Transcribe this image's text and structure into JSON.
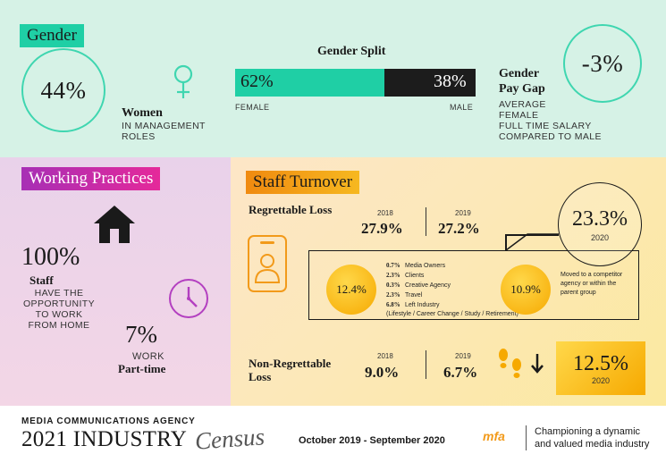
{
  "gender": {
    "tag": "Gender",
    "women_pct": "44%",
    "women_title": "Women",
    "women_desc_1": "IN MANAGEMENT",
    "women_desc_2": "ROLES",
    "split_title": "Gender Split",
    "female_pct": "62%",
    "male_pct": "38%",
    "female_label": "FEMALE",
    "male_label": "MALE",
    "female_share": 0.62,
    "paygap_title_1": "Gender",
    "paygap_title_2": "Pay Gap",
    "paygap_desc_1": "AVERAGE",
    "paygap_desc_2": "FEMALE",
    "paygap_desc_3": "FULL TIME SALARY",
    "paygap_desc_4": "COMPARED TO MALE",
    "paygap_value": "-3%",
    "accent": "#1fcfa5"
  },
  "working_practices": {
    "tag": "Working Practices",
    "staff_pct": "100%",
    "staff_title": "Staff",
    "staff_desc_1": "HAVE THE",
    "staff_desc_2": "OPPORTUNITY",
    "staff_desc_3": "TO WORK",
    "staff_desc_4": "FROM HOME",
    "parttime_pct": "7%",
    "parttime_desc": "WORK",
    "parttime_title": "Part-time",
    "icons": [
      "home-icon",
      "clock-icon"
    ]
  },
  "staff_turnover": {
    "tag": "Staff Turnover",
    "regrettable_title": "Regrettable Loss",
    "year_2018": "2018",
    "year_2019": "2019",
    "reg_2018": "27.9%",
    "reg_2019": "27.2%",
    "reg_2020": "23.3%",
    "reg_2020_year": "2020",
    "reason_a_pct": "12.4%",
    "reason_a_items": [
      {
        "pct": "0.7%",
        "label": "Media Owners"
      },
      {
        "pct": "2.3%",
        "label": "Clients"
      },
      {
        "pct": "0.3%",
        "label": "Creative Agency"
      },
      {
        "pct": "2.3%",
        "label": "Travel"
      },
      {
        "pct": "6.8%",
        "label": "Left Industry"
      }
    ],
    "reason_a_note": "(Lifestyle / Career Change / Study / Retirement)",
    "reason_b_pct": "10.9%",
    "reason_b_desc_1": "Moved to a competitor",
    "reason_b_desc_2": "agency or within the",
    "reason_b_desc_3": "parent group",
    "nonreg_title_1": "Non-Regrettable",
    "nonreg_title_2": "Loss",
    "nonreg_2018": "9.0%",
    "nonreg_2019": "6.7%",
    "nonreg_2020": "12.5%",
    "nonreg_2020_year": "2020",
    "icons": [
      "employee-badge-icon",
      "footsteps-icon",
      "down-arrow-icon"
    ]
  },
  "footer": {
    "org": "MEDIA COMMUNICATIONS AGENCY",
    "title": "2021 INDUSTRY",
    "script_word": "Census",
    "period": "October 2019 - September 2020",
    "logo_text": "mfa",
    "tagline_1": "Championing a dynamic",
    "tagline_2": "and valued media industry"
  }
}
